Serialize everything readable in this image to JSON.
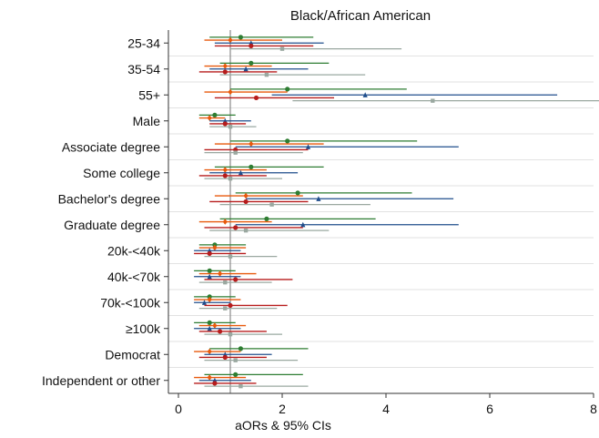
{
  "chart_data": {
    "type": "forest",
    "title": "Black/African American",
    "xlabel": "aORs & 95% CIs",
    "ylabel": "",
    "xlim": [
      0,
      12
    ],
    "xticks": [
      "0",
      "2",
      "4",
      "6",
      "8",
      "10",
      "12"
    ],
    "reference_line": 1,
    "grid": "horizontal",
    "categories": [
      "25-34",
      "35-54",
      "55+",
      "Male",
      "Associate degree",
      "Some college",
      "Bachelor's degree",
      "Graduate degree",
      "20k-<40k",
      "40k-<70k",
      "70k-<100k",
      "≥100k",
      "Democrat",
      "Independent or other"
    ],
    "series": [
      {
        "color": "#2e7d32",
        "marker": "circle",
        "values": [
          {
            "est": 1.2,
            "lo": 0.6,
            "hi": 2.6
          },
          {
            "est": 1.4,
            "lo": 0.8,
            "hi": 2.9
          },
          {
            "est": 2.1,
            "lo": 1.0,
            "hi": 4.4
          },
          {
            "est": 0.7,
            "lo": 0.4,
            "hi": 1.1
          },
          {
            "est": 2.1,
            "lo": 1.0,
            "hi": 4.6
          },
          {
            "est": 1.4,
            "lo": 0.7,
            "hi": 2.8
          },
          {
            "est": 2.3,
            "lo": 1.1,
            "hi": 4.5
          },
          {
            "est": 1.7,
            "lo": 0.8,
            "hi": 3.8
          },
          {
            "est": 0.7,
            "lo": 0.4,
            "hi": 1.3
          },
          {
            "est": 0.6,
            "lo": 0.3,
            "hi": 1.1
          },
          {
            "est": 0.6,
            "lo": 0.3,
            "hi": 1.1
          },
          {
            "est": 0.6,
            "lo": 0.3,
            "hi": 1.1
          },
          {
            "est": 1.2,
            "lo": 0.6,
            "hi": 2.5
          },
          {
            "est": 1.1,
            "lo": 0.5,
            "hi": 2.4
          }
        ]
      },
      {
        "color": "#e8590c",
        "marker": "diamond",
        "values": [
          {
            "est": 1.0,
            "lo": 0.5,
            "hi": 2.0
          },
          {
            "est": 0.9,
            "lo": 0.5,
            "hi": 1.8
          },
          {
            "est": 1.0,
            "lo": 0.5,
            "hi": 2.1
          },
          {
            "est": 0.6,
            "lo": 0.4,
            "hi": 0.9
          },
          {
            "est": 1.4,
            "lo": 0.7,
            "hi": 2.8
          },
          {
            "est": 0.9,
            "lo": 0.5,
            "hi": 1.7
          },
          {
            "est": 1.3,
            "lo": 0.7,
            "hi": 2.4
          },
          {
            "est": 0.9,
            "lo": 0.4,
            "hi": 1.8
          },
          {
            "est": 0.7,
            "lo": 0.4,
            "hi": 1.3
          },
          {
            "est": 0.8,
            "lo": 0.4,
            "hi": 1.5
          },
          {
            "est": 0.6,
            "lo": 0.3,
            "hi": 1.2
          },
          {
            "est": 0.7,
            "lo": 0.4,
            "hi": 1.3
          },
          {
            "est": 0.6,
            "lo": 0.3,
            "hi": 1.2
          },
          {
            "est": 0.6,
            "lo": 0.3,
            "hi": 1.3
          }
        ]
      },
      {
        "color": "#1f4e8c",
        "marker": "triangle",
        "values": [
          {
            "est": 1.4,
            "lo": 0.7,
            "hi": 2.8
          },
          {
            "est": 1.3,
            "lo": 0.6,
            "hi": 2.5
          },
          {
            "est": 3.6,
            "lo": 1.8,
            "hi": 7.3
          },
          {
            "est": 0.9,
            "lo": 0.6,
            "hi": 1.4
          },
          {
            "est": 2.5,
            "lo": 1.1,
            "hi": 5.4
          },
          {
            "est": 1.2,
            "lo": 0.6,
            "hi": 2.3
          },
          {
            "est": 2.7,
            "lo": 1.3,
            "hi": 5.3
          },
          {
            "est": 2.4,
            "lo": 1.1,
            "hi": 5.4
          },
          {
            "est": 0.6,
            "lo": 0.3,
            "hi": 1.2
          },
          {
            "est": 0.6,
            "lo": 0.3,
            "hi": 1.2
          },
          {
            "est": 0.5,
            "lo": 0.3,
            "hi": 1.0
          },
          {
            "est": 0.6,
            "lo": 0.3,
            "hi": 1.2
          },
          {
            "est": 0.9,
            "lo": 0.5,
            "hi": 1.8
          },
          {
            "est": 0.7,
            "lo": 0.4,
            "hi": 1.4
          }
        ]
      },
      {
        "color": "#b71c1c",
        "marker": "circle",
        "values": [
          {
            "est": 1.4,
            "lo": 0.7,
            "hi": 2.6
          },
          {
            "est": 0.9,
            "lo": 0.4,
            "hi": 1.9
          },
          {
            "est": 1.5,
            "lo": 0.7,
            "hi": 3.0
          },
          {
            "est": 0.9,
            "lo": 0.6,
            "hi": 1.3
          },
          {
            "est": 1.1,
            "lo": 0.5,
            "hi": 2.5
          },
          {
            "est": 0.9,
            "lo": 0.4,
            "hi": 1.7
          },
          {
            "est": 1.3,
            "lo": 0.6,
            "hi": 2.5
          },
          {
            "est": 1.1,
            "lo": 0.5,
            "hi": 2.4
          },
          {
            "est": 0.6,
            "lo": 0.3,
            "hi": 1.3
          },
          {
            "est": 1.1,
            "lo": 0.5,
            "hi": 2.2
          },
          {
            "est": 1.0,
            "lo": 0.5,
            "hi": 2.1
          },
          {
            "est": 0.8,
            "lo": 0.4,
            "hi": 1.7
          },
          {
            "est": 0.9,
            "lo": 0.4,
            "hi": 1.7
          },
          {
            "est": 0.7,
            "lo": 0.3,
            "hi": 1.5
          }
        ]
      },
      {
        "color": "#9aa8a0",
        "marker": "square",
        "values": [
          {
            "est": 2.0,
            "lo": 1.0,
            "hi": 4.3
          },
          {
            "est": 1.7,
            "lo": 0.8,
            "hi": 3.6
          },
          {
            "est": 4.9,
            "lo": 2.2,
            "hi": 10.9
          },
          {
            "est": 1.0,
            "lo": 0.6,
            "hi": 1.5
          },
          {
            "est": 1.1,
            "lo": 0.5,
            "hi": 2.4
          },
          {
            "est": 1.0,
            "lo": 0.5,
            "hi": 2.0
          },
          {
            "est": 1.8,
            "lo": 0.8,
            "hi": 3.7
          },
          {
            "est": 1.3,
            "lo": 0.6,
            "hi": 2.9
          },
          {
            "est": 1.0,
            "lo": 0.5,
            "hi": 1.9
          },
          {
            "est": 0.9,
            "lo": 0.4,
            "hi": 1.8
          },
          {
            "est": 0.9,
            "lo": 0.4,
            "hi": 1.9
          },
          {
            "est": 1.0,
            "lo": 0.5,
            "hi": 2.0
          },
          {
            "est": 1.1,
            "lo": 0.5,
            "hi": 2.3
          },
          {
            "est": 1.2,
            "lo": 0.5,
            "hi": 2.5
          }
        ]
      }
    ]
  }
}
